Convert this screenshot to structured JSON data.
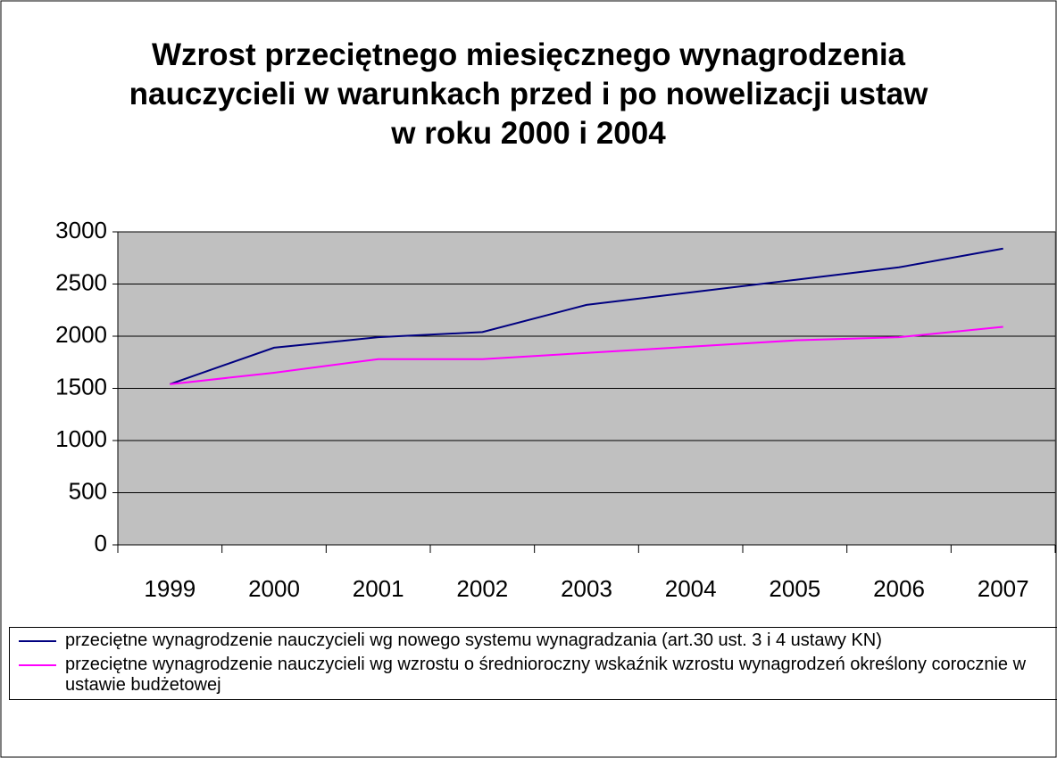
{
  "chart_data": {
    "type": "line",
    "title": "Wzrost przeciętnego miesięcznego wynagrodzenia nauczycieli w warunkach przed i po nowelizacji ustaw w roku 2000 i 2004",
    "categories": [
      "1999",
      "2000",
      "2001",
      "2002",
      "2003",
      "2004",
      "2005",
      "2006",
      "2007"
    ],
    "series": [
      {
        "name": "przeciętne wynagrodzenie nauczycieli wg nowego systemu wynagradzania (art.30 ust. 3 i 4 ustawy KN)",
        "color": "#000080",
        "values": [
          1540,
          1890,
          1990,
          2040,
          2300,
          2420,
          2540,
          2660,
          2840
        ]
      },
      {
        "name": "przeciętne wynagrodzenie nauczycieli wg wzrostu o średnioroczny wskaźnik wzrostu wynagrodzeń określony corocznie w ustawie budżetowej",
        "color": "#ff00ff",
        "values": [
          1540,
          1650,
          1780,
          1780,
          1840,
          1900,
          1960,
          1990,
          2090
        ]
      }
    ],
    "ylim": [
      0,
      3000
    ],
    "yticks": [
      0,
      500,
      1000,
      1500,
      2000,
      2500,
      3000
    ],
    "grid": true,
    "legend": "bottom"
  }
}
